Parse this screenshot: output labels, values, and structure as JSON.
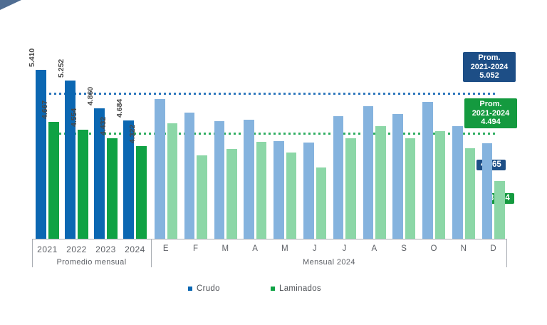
{
  "colors": {
    "crudo_dark": "#0b67b2",
    "laminados_dark": "#0fa244",
    "crudo_light": "#85b3de",
    "laminados_light": "#8cd7a7",
    "crudo_ref_line": "#2f78bd",
    "laminados_ref_line": "#2fae62",
    "navy_callout": "#1d4e86",
    "green_callout": "#149a3f",
    "corner_decoration": "#4f6d92"
  },
  "chart_data": {
    "type": "bar",
    "series_names": [
      "Crudo",
      "Laminados"
    ],
    "ylim": [
      3000,
      5600
    ],
    "grid": "off",
    "yearly": {
      "section_label": "Promedio mensual",
      "categories": [
        "2021",
        "2022",
        "2023",
        "2024"
      ],
      "series": [
        {
          "name": "Crudo",
          "values": [
            5410,
            5252,
            4860,
            4684
          ],
          "labels": [
            "5.410",
            "5.252",
            "4.860",
            "4.684"
          ]
        },
        {
          "name": "Laminados",
          "values": [
            4667,
            4554,
            4432,
            4322
          ],
          "labels": [
            "4.667",
            "4.554",
            "4.432",
            "4.322"
          ]
        }
      ]
    },
    "monthly": {
      "section_label": "Mensual 2024",
      "categories": [
        "E",
        "F",
        "M",
        "A",
        "M",
        "J",
        "J",
        "A",
        "S",
        "O",
        "N",
        "D"
      ],
      "series": [
        {
          "name": "Crudo",
          "values": [
            4990,
            4795,
            4675,
            4700,
            4395,
            4375,
            4745,
            4885,
            4775,
            4945,
            4605,
            4365
          ]
        },
        {
          "name": "Laminados",
          "values": [
            4650,
            4195,
            4280,
            4380,
            4230,
            4020,
            4435,
            4605,
            4435,
            4540,
            4290,
            3824
          ]
        }
      ]
    },
    "reference_lines": [
      {
        "series": "Crudo",
        "value": 5052,
        "label_lines": [
          "Prom.",
          "2021-2024",
          "5.052"
        ]
      },
      {
        "series": "Laminados",
        "value": 4494,
        "label_lines": [
          "Prom.",
          "2021-2024",
          "4.494"
        ]
      }
    ],
    "annotations": [
      {
        "text": "4.365",
        "series": "Crudo",
        "category": "D"
      },
      {
        "text": "3.824",
        "series": "Laminados",
        "category": "D"
      }
    ]
  },
  "legend": {
    "items": [
      {
        "label": "Crudo",
        "color": "#0b67b2"
      },
      {
        "label": "Laminados",
        "color": "#0fa244"
      }
    ]
  }
}
